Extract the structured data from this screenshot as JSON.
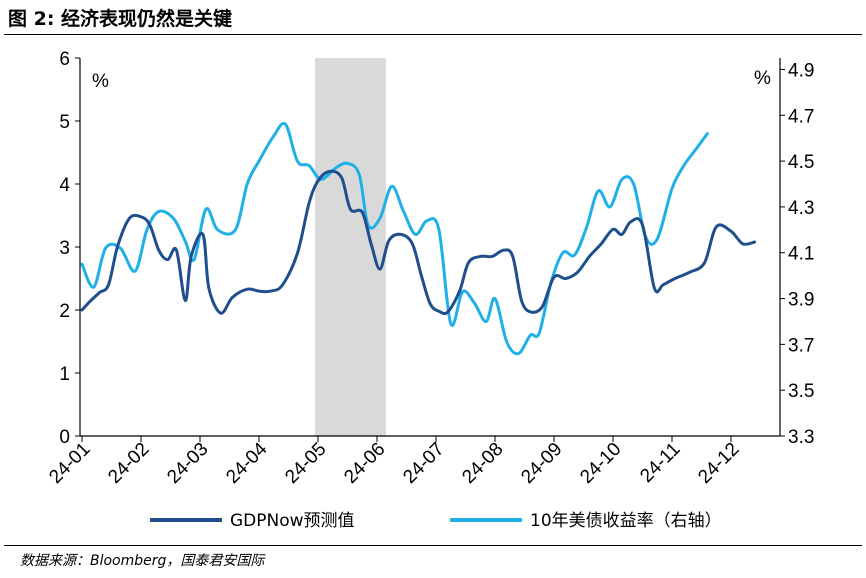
{
  "figure": {
    "title": "图 2:  经济表现仍然是关键",
    "source": "数据来源：Bloomberg，国泰君安国际"
  },
  "chart_data": {
    "type": "line",
    "left_axis": {
      "unit": "%",
      "range": [
        0,
        6
      ],
      "ticks": [
        "0",
        "1",
        "2",
        "3",
        "4",
        "5",
        "6"
      ]
    },
    "right_axis": {
      "unit": "%",
      "range": [
        3.3,
        4.95
      ],
      "ticks": [
        "3.3",
        "3.5",
        "3.7",
        "3.9",
        "4.1",
        "4.3",
        "4.5",
        "4.7",
        "4.9"
      ]
    },
    "x_labels": [
      "24-01",
      "24-02",
      "24-03",
      "24-04",
      "24-05",
      "24-06",
      "24-07",
      "24-08",
      "24-09",
      "24-10",
      "24-11",
      "24-12"
    ],
    "shaded_region": {
      "from": 3.95,
      "to": 5.15,
      "color": "#d9d9d9"
    },
    "series": [
      {
        "name": "GDPNow预测值",
        "axis": "left",
        "color": "#1f4e8c",
        "points": [
          [
            0.0,
            2.0
          ],
          [
            0.15,
            2.15
          ],
          [
            0.3,
            2.28
          ],
          [
            0.45,
            2.4
          ],
          [
            0.6,
            3.0
          ],
          [
            0.8,
            3.45
          ],
          [
            1.0,
            3.48
          ],
          [
            1.15,
            3.35
          ],
          [
            1.3,
            2.95
          ],
          [
            1.45,
            2.8
          ],
          [
            1.6,
            2.95
          ],
          [
            1.75,
            2.15
          ],
          [
            1.85,
            2.85
          ],
          [
            2.05,
            3.2
          ],
          [
            2.15,
            2.35
          ],
          [
            2.35,
            1.95
          ],
          [
            2.55,
            2.2
          ],
          [
            2.8,
            2.33
          ],
          [
            3.0,
            2.3
          ],
          [
            3.2,
            2.3
          ],
          [
            3.4,
            2.4
          ],
          [
            3.65,
            2.9
          ],
          [
            3.85,
            3.7
          ],
          [
            4.0,
            4.05
          ],
          [
            4.2,
            4.2
          ],
          [
            4.4,
            4.1
          ],
          [
            4.55,
            3.6
          ],
          [
            4.75,
            3.55
          ],
          [
            4.9,
            3.05
          ],
          [
            5.05,
            2.65
          ],
          [
            5.2,
            3.1
          ],
          [
            5.4,
            3.2
          ],
          [
            5.6,
            3.05
          ],
          [
            5.75,
            2.55
          ],
          [
            5.9,
            2.1
          ],
          [
            6.05,
            1.98
          ],
          [
            6.2,
            1.97
          ],
          [
            6.4,
            2.3
          ],
          [
            6.55,
            2.75
          ],
          [
            6.75,
            2.85
          ],
          [
            6.95,
            2.85
          ],
          [
            7.15,
            2.95
          ],
          [
            7.3,
            2.85
          ],
          [
            7.45,
            2.15
          ],
          [
            7.6,
            1.97
          ],
          [
            7.8,
            2.05
          ],
          [
            8.0,
            2.52
          ],
          [
            8.2,
            2.5
          ],
          [
            8.4,
            2.6
          ],
          [
            8.6,
            2.85
          ],
          [
            8.8,
            3.05
          ],
          [
            9.0,
            3.28
          ],
          [
            9.15,
            3.2
          ],
          [
            9.3,
            3.4
          ],
          [
            9.5,
            3.35
          ],
          [
            9.7,
            2.35
          ],
          [
            9.85,
            2.4
          ],
          [
            10.05,
            2.5
          ],
          [
            10.3,
            2.6
          ],
          [
            10.55,
            2.75
          ],
          [
            10.75,
            3.32
          ],
          [
            11.0,
            3.25
          ],
          [
            11.2,
            3.05
          ],
          [
            11.4,
            3.08
          ]
        ]
      },
      {
        "name": "10年美债收益率（右轴）",
        "axis": "right",
        "color": "#1fb0e8",
        "points": [
          [
            0.0,
            4.05
          ],
          [
            0.2,
            3.95
          ],
          [
            0.4,
            4.12
          ],
          [
            0.65,
            4.12
          ],
          [
            0.9,
            4.02
          ],
          [
            1.1,
            4.2
          ],
          [
            1.3,
            4.28
          ],
          [
            1.55,
            4.25
          ],
          [
            1.75,
            4.15
          ],
          [
            1.9,
            4.07
          ],
          [
            2.1,
            4.29
          ],
          [
            2.3,
            4.2
          ],
          [
            2.6,
            4.2
          ],
          [
            2.8,
            4.4
          ],
          [
            3.0,
            4.5
          ],
          [
            3.25,
            4.61
          ],
          [
            3.45,
            4.66
          ],
          [
            3.65,
            4.5
          ],
          [
            3.85,
            4.48
          ],
          [
            4.05,
            4.42
          ],
          [
            4.3,
            4.47
          ],
          [
            4.5,
            4.49
          ],
          [
            4.7,
            4.44
          ],
          [
            4.85,
            4.22
          ],
          [
            5.05,
            4.25
          ],
          [
            5.25,
            4.39
          ],
          [
            5.45,
            4.28
          ],
          [
            5.65,
            4.18
          ],
          [
            5.85,
            4.24
          ],
          [
            6.05,
            4.2
          ],
          [
            6.25,
            3.79
          ],
          [
            6.45,
            3.93
          ],
          [
            6.65,
            3.88
          ],
          [
            6.85,
            3.8
          ],
          [
            7.0,
            3.9
          ],
          [
            7.2,
            3.71
          ],
          [
            7.4,
            3.66
          ],
          [
            7.6,
            3.74
          ],
          [
            7.75,
            3.75
          ],
          [
            7.95,
            3.97
          ],
          [
            8.15,
            4.1
          ],
          [
            8.35,
            4.09
          ],
          [
            8.55,
            4.21
          ],
          [
            8.75,
            4.37
          ],
          [
            8.95,
            4.3
          ],
          [
            9.15,
            4.42
          ],
          [
            9.35,
            4.4
          ],
          [
            9.55,
            4.17
          ],
          [
            9.75,
            4.16
          ],
          [
            10.0,
            4.38
          ],
          [
            10.2,
            4.48
          ],
          [
            10.4,
            4.55
          ],
          [
            10.6,
            4.62
          ]
        ]
      }
    ],
    "legend": {
      "placement": "bottom"
    }
  }
}
